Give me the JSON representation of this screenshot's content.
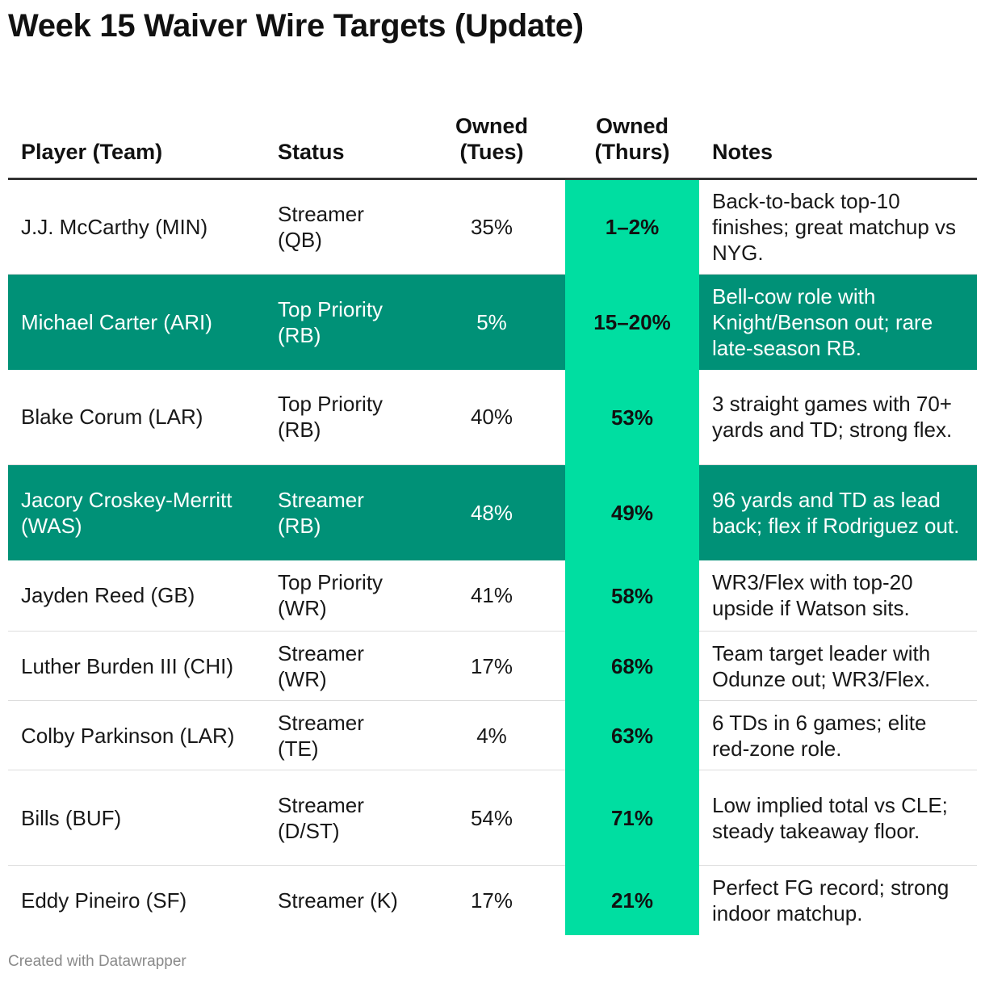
{
  "title": "Week 15 Waiver Wire Targets (Update)",
  "footer": "Created with Datawrapper",
  "colors": {
    "highlight_row": "#009177",
    "highlight_column": "#00dea1",
    "header_rule": "#333333"
  },
  "chart_data": {
    "type": "table",
    "title": "Week 15 Waiver Wire Targets (Update)",
    "columns": [
      "Player (Team)",
      "Status",
      "Owned (Tues)",
      "Owned (Thurs)",
      "Notes"
    ],
    "highlighted_column": "Owned (Thurs)",
    "rows": [
      {
        "player": "J.J. McCarthy (MIN)",
        "status": "Streamer (QB)",
        "owned_tues": "35%",
        "owned_thurs": "1–2%",
        "notes": "Back-to-back top-10 finishes; great matchup vs NYG.",
        "highlighted": false
      },
      {
        "player": "Michael Carter (ARI)",
        "status": "Top Priority (RB)",
        "owned_tues": "5%",
        "owned_thurs": "15–20%",
        "notes": "Bell-cow role with Knight/Benson out; rare late-season RB.",
        "highlighted": true
      },
      {
        "player": "Blake Corum (LAR)",
        "status": "Top Priority (RB)",
        "owned_tues": "40%",
        "owned_thurs": "53%",
        "notes": "3 straight games with 70+ yards and TD; strong flex.",
        "highlighted": false
      },
      {
        "player": "Jacory Croskey-Merritt (WAS)",
        "status": "Streamer (RB)",
        "owned_tues": "48%",
        "owned_thurs": "49%",
        "notes": "96 yards and TD as lead back; flex if Rodriguez out.",
        "highlighted": true
      },
      {
        "player": "Jayden Reed (GB)",
        "status": "Top Priority (WR)",
        "owned_tues": "41%",
        "owned_thurs": "58%",
        "notes": "WR3/Flex with top-20 upside if Watson sits.",
        "highlighted": false
      },
      {
        "player": "Luther Burden III (CHI)",
        "status": "Streamer (WR)",
        "owned_tues": "17%",
        "owned_thurs": "68%",
        "notes": "Team target leader with Odunze out; WR3/Flex.",
        "highlighted": false
      },
      {
        "player": "Colby Parkinson (LAR)",
        "status": "Streamer (TE)",
        "owned_tues": "4%",
        "owned_thurs": "63%",
        "notes": "6 TDs in 6 games; elite red-zone role.",
        "highlighted": false
      },
      {
        "player": "Bills (BUF)",
        "status": "Streamer (D/ST)",
        "owned_tues": "54%",
        "owned_thurs": "71%",
        "notes": "Low implied total vs CLE; steady takeaway floor.",
        "highlighted": false
      },
      {
        "player": "Eddy Pineiro (SF)",
        "status": "Streamer (K)",
        "owned_tues": "17%",
        "owned_thurs": "21%",
        "notes": "Perfect FG record; strong indoor matchup.",
        "highlighted": false
      }
    ]
  }
}
